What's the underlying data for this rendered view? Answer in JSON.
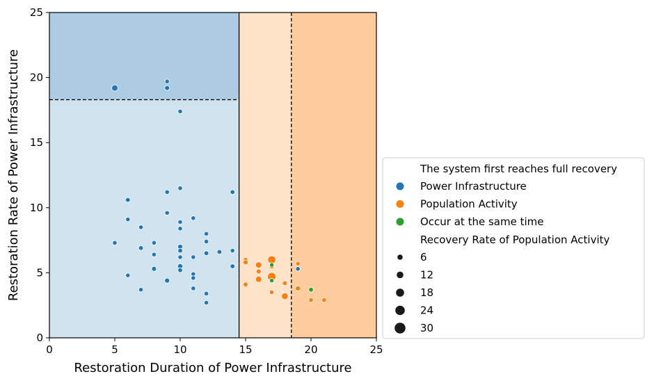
{
  "chart_data": {
    "type": "scatter",
    "xlabel": "Restoration Duration of Power Infrastructure",
    "ylabel": "Restoration Rate of Power Infrastructure",
    "xlim": [
      0,
      25
    ],
    "ylim": [
      0,
      25
    ],
    "xticks": [
      "0",
      "5",
      "10",
      "15",
      "20",
      "25"
    ],
    "yticks": [
      "0",
      "5",
      "10",
      "15",
      "20",
      "25"
    ],
    "grid": false,
    "regions": [
      {
        "name": "power-first-high-rate",
        "x": [
          0,
          14.5
        ],
        "y": [
          18.3,
          25
        ],
        "color": "#adcbe3"
      },
      {
        "name": "power-first-low-rate",
        "x": [
          0,
          14.5
        ],
        "y": [
          0,
          18.3
        ],
        "color": "#d2e3f0"
      },
      {
        "name": "middle-band",
        "x": [
          14.5,
          18.5
        ],
        "y": [
          0,
          25
        ],
        "color": "#ffe3c9"
      },
      {
        "name": "right-band",
        "x": [
          18.5,
          25
        ],
        "y": [
          0,
          25
        ],
        "color": "#ffcc9d"
      }
    ],
    "reference_lines": [
      {
        "name": "horizontal-threshold",
        "orientation": "horizontal",
        "value": 18.3,
        "x_range": [
          0,
          14.5
        ],
        "style": "dashed"
      },
      {
        "name": "vertical-threshold-solid",
        "orientation": "vertical",
        "value": 14.5,
        "style": "solid"
      },
      {
        "name": "vertical-threshold-dashed",
        "orientation": "vertical",
        "value": 18.5,
        "style": "dashed"
      }
    ],
    "series": [
      {
        "name": "Power Infrastructure",
        "color": "#1f77b4",
        "points": [
          {
            "x": 5,
            "y": 19.2,
            "size": 14
          },
          {
            "x": 9,
            "y": 19.7,
            "size": 6
          },
          {
            "x": 9,
            "y": 19.2,
            "size": 8
          },
          {
            "x": 10,
            "y": 17.4,
            "size": 6
          },
          {
            "x": 6,
            "y": 10.6,
            "size": 7
          },
          {
            "x": 10,
            "y": 11.5,
            "size": 6
          },
          {
            "x": 9,
            "y": 11.2,
            "size": 6
          },
          {
            "x": 14,
            "y": 11.2,
            "size": 7
          },
          {
            "x": 9,
            "y": 9.6,
            "size": 6
          },
          {
            "x": 6,
            "y": 9.1,
            "size": 6
          },
          {
            "x": 11,
            "y": 9.2,
            "size": 6
          },
          {
            "x": 10,
            "y": 8.9,
            "size": 6
          },
          {
            "x": 7,
            "y": 8.5,
            "size": 6
          },
          {
            "x": 10,
            "y": 8.4,
            "size": 6
          },
          {
            "x": 12,
            "y": 8.0,
            "size": 6
          },
          {
            "x": 12,
            "y": 7.4,
            "size": 6
          },
          {
            "x": 5,
            "y": 7.3,
            "size": 6
          },
          {
            "x": 8,
            "y": 7.3,
            "size": 6
          },
          {
            "x": 10,
            "y": 7.0,
            "size": 8
          },
          {
            "x": 7,
            "y": 6.9,
            "size": 7
          },
          {
            "x": 10,
            "y": 6.7,
            "size": 7
          },
          {
            "x": 14,
            "y": 6.7,
            "size": 6
          },
          {
            "x": 13,
            "y": 6.6,
            "size": 7
          },
          {
            "x": 12,
            "y": 6.5,
            "size": 7
          },
          {
            "x": 8,
            "y": 6.4,
            "size": 6
          },
          {
            "x": 10,
            "y": 6.2,
            "size": 6
          },
          {
            "x": 11,
            "y": 6.2,
            "size": 6
          },
          {
            "x": 14,
            "y": 5.5,
            "size": 7
          },
          {
            "x": 10,
            "y": 5.5,
            "size": 9
          },
          {
            "x": 8,
            "y": 5.3,
            "size": 8
          },
          {
            "x": 10,
            "y": 5.2,
            "size": 7
          },
          {
            "x": 19,
            "y": 5.3,
            "size": 6
          },
          {
            "x": 11,
            "y": 4.9,
            "size": 6
          },
          {
            "x": 11,
            "y": 4.6,
            "size": 6
          },
          {
            "x": 6,
            "y": 4.8,
            "size": 6
          },
          {
            "x": 9,
            "y": 4.4,
            "size": 8
          },
          {
            "x": 7,
            "y": 3.7,
            "size": 6
          },
          {
            "x": 11,
            "y": 3.8,
            "size": 6
          },
          {
            "x": 12,
            "y": 3.4,
            "size": 6
          },
          {
            "x": 12,
            "y": 2.7,
            "size": 6
          }
        ]
      },
      {
        "name": "Population Activity",
        "color": "#ff7f0e",
        "points": [
          {
            "x": 15,
            "y": 6.0,
            "size": 7
          },
          {
            "x": 15,
            "y": 5.8,
            "size": 8
          },
          {
            "x": 17,
            "y": 6.0,
            "size": 22
          },
          {
            "x": 16,
            "y": 5.6,
            "size": 14
          },
          {
            "x": 17,
            "y": 5.5,
            "size": 9
          },
          {
            "x": 19,
            "y": 5.7,
            "size": 6
          },
          {
            "x": 16,
            "y": 5.1,
            "size": 8
          },
          {
            "x": 17,
            "y": 4.7,
            "size": 24
          },
          {
            "x": 16,
            "y": 4.5,
            "size": 14
          },
          {
            "x": 18,
            "y": 4.2,
            "size": 7
          },
          {
            "x": 15,
            "y": 4.1,
            "size": 7
          },
          {
            "x": 19,
            "y": 3.8,
            "size": 9
          },
          {
            "x": 17,
            "y": 3.5,
            "size": 6
          },
          {
            "x": 18,
            "y": 3.2,
            "size": 16
          },
          {
            "x": 20,
            "y": 2.9,
            "size": 7
          },
          {
            "x": 21,
            "y": 2.9,
            "size": 7
          }
        ]
      },
      {
        "name": "Occur at the same time",
        "color": "#2ca02c",
        "points": [
          {
            "x": 17,
            "y": 5.6,
            "size": 6
          },
          {
            "x": 17,
            "y": 4.4,
            "size": 6
          },
          {
            "x": 20,
            "y": 3.7,
            "size": 7
          }
        ]
      }
    ],
    "legend": {
      "position": "right",
      "hue_title": "The system first reaches full recovery",
      "size_title": "Recovery Rate of Population Activity",
      "size_entries": [
        {
          "label": "6",
          "value": 6
        },
        {
          "label": "12",
          "value": 12
        },
        {
          "label": "18",
          "value": 18
        },
        {
          "label": "24",
          "value": 24
        },
        {
          "label": "30",
          "value": 30
        }
      ]
    }
  }
}
